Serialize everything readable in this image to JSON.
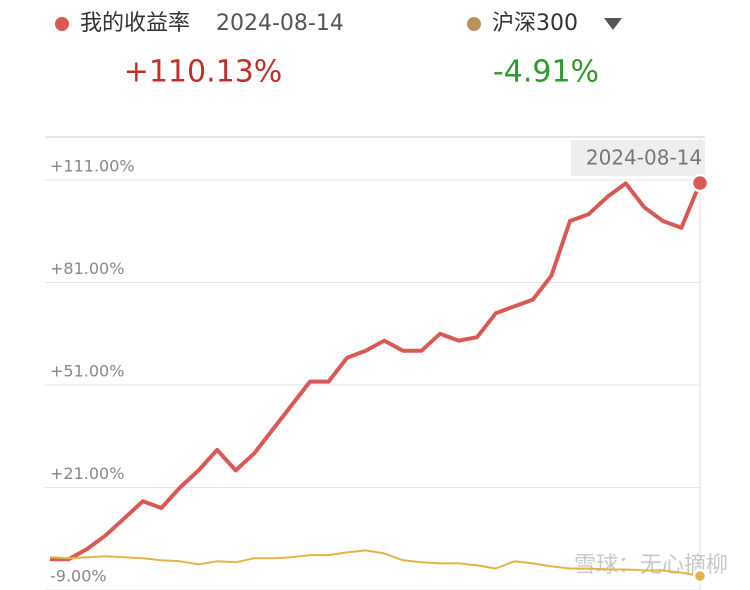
{
  "chart_data": {
    "type": "line",
    "legend": {
      "date": "2024-08-14",
      "value_colors": [
        "#c0302b",
        "#2e9a2e"
      ],
      "dot_colors": [
        "#d95a55",
        "#b8935a"
      ]
    },
    "categories": [
      null,
      null,
      null,
      null,
      null,
      null,
      null,
      null,
      null,
      null,
      null,
      null,
      null,
      null,
      null,
      null,
      null,
      null,
      null,
      null,
      null,
      null,
      null,
      null,
      null,
      null,
      null,
      null,
      null,
      null,
      null,
      null,
      null,
      null,
      null,
      "2024-08-14"
    ],
    "series": [
      {
        "name": "我的收益率",
        "color": "#d95a55",
        "values": [
          0,
          0,
          3,
          7,
          12,
          17,
          15,
          21,
          26,
          32,
          26,
          31,
          38,
          45,
          52,
          52,
          59,
          61,
          64,
          61,
          61,
          66,
          64,
          65,
          72,
          74,
          76,
          83,
          99,
          101,
          106,
          110,
          103,
          99,
          97,
          110.13
        ],
        "value_labels": [
          null,
          null,
          null,
          null,
          null,
          null,
          null,
          null,
          null,
          null,
          null,
          null,
          null,
          null,
          null,
          null,
          null,
          null,
          null,
          null,
          null,
          null,
          null,
          null,
          null,
          null,
          null,
          null,
          null,
          null,
          null,
          null,
          null,
          null,
          null,
          "+110.13%"
        ]
      },
      {
        "name": "沪深300",
        "color": "#e2b544",
        "values": [
          0.6,
          0.3,
          0.6,
          0.9,
          0.6,
          0.3,
          -0.3,
          -0.6,
          -1.5,
          -0.6,
          -0.9,
          0.3,
          0.3,
          0.6,
          1.2,
          1.2,
          2,
          2.6,
          1.7,
          -0.3,
          -0.9,
          -1.2,
          -1.2,
          -1.8,
          -2.7,
          -0.6,
          -1.2,
          -2.1,
          -2.7,
          -2.7,
          -3,
          -3,
          -3.3,
          -3.3,
          -3.9,
          -4.91
        ],
        "value_labels": [
          null,
          null,
          null,
          null,
          null,
          null,
          null,
          null,
          null,
          null,
          null,
          null,
          null,
          null,
          null,
          null,
          null,
          null,
          null,
          null,
          null,
          null,
          null,
          null,
          null,
          null,
          null,
          null,
          null,
          null,
          null,
          null,
          null,
          null,
          null,
          "-4.91%"
        ]
      }
    ],
    "ylim": [
      -9,
      111
    ],
    "yticks": [
      {
        "value": 111,
        "label": "+111.00%"
      },
      {
        "value": 81,
        "label": "+81.00%"
      },
      {
        "value": 51,
        "label": "+51.00%"
      },
      {
        "value": 21,
        "label": "+21.00%"
      },
      {
        "value": -9,
        "label": "-9.00%"
      }
    ],
    "grid": true,
    "watermark": "雪球：无心摘柳"
  }
}
